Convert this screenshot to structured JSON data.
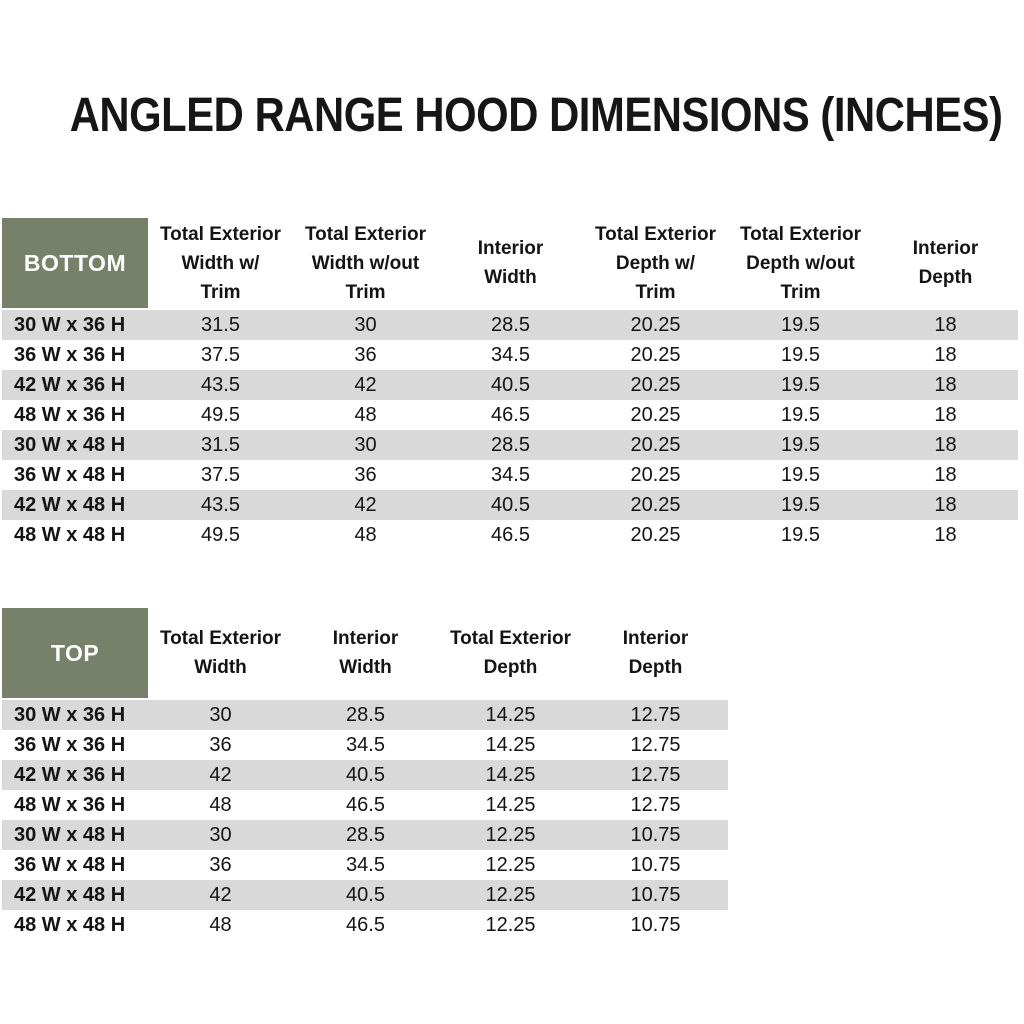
{
  "page": {
    "title": "ANGLED RANGE HOOD DIMENSIONS (INCHES)"
  },
  "colors": {
    "header_green": "#778169",
    "row_stripe_gray": "#d9d9d9",
    "header_text_white": "#ffffff",
    "body_text": "#141414"
  },
  "tables": [
    {
      "corner_label": "BOTTOM",
      "columns": [
        "Total Exterior\nWidth w/\nTrim",
        "Total Exterior\nWidth w/out\nTrim",
        "Interior\nWidth",
        "Total Exterior\nDepth w/\nTrim",
        "Total Exterior\nDepth w/out\nTrim",
        "Interior\nDepth"
      ],
      "rows": [
        {
          "label": "30 W x 36 H",
          "values": [
            "31.5",
            "30",
            "28.5",
            "20.25",
            "19.5",
            "18"
          ]
        },
        {
          "label": "36 W x 36 H",
          "values": [
            "37.5",
            "36",
            "34.5",
            "20.25",
            "19.5",
            "18"
          ]
        },
        {
          "label": "42 W x 36 H",
          "values": [
            "43.5",
            "42",
            "40.5",
            "20.25",
            "19.5",
            "18"
          ]
        },
        {
          "label": "48 W x 36 H",
          "values": [
            "49.5",
            "48",
            "46.5",
            "20.25",
            "19.5",
            "18"
          ]
        },
        {
          "label": "30 W x 48 H",
          "values": [
            "31.5",
            "30",
            "28.5",
            "20.25",
            "19.5",
            "18"
          ]
        },
        {
          "label": "36 W x 48 H",
          "values": [
            "37.5",
            "36",
            "34.5",
            "20.25",
            "19.5",
            "18"
          ]
        },
        {
          "label": "42 W x 48 H",
          "values": [
            "43.5",
            "42",
            "40.5",
            "20.25",
            "19.5",
            "18"
          ]
        },
        {
          "label": "48 W x 48 H",
          "values": [
            "49.5",
            "48",
            "46.5",
            "20.25",
            "19.5",
            "18"
          ]
        }
      ]
    },
    {
      "corner_label": "TOP",
      "columns": [
        "Total Exterior\nWidth",
        "Interior\nWidth",
        "Total Exterior\nDepth",
        "Interior\nDepth"
      ],
      "rows": [
        {
          "label": "30 W x 36 H",
          "values": [
            "30",
            "28.5",
            "14.25",
            "12.75"
          ]
        },
        {
          "label": "36 W x 36 H",
          "values": [
            "36",
            "34.5",
            "14.25",
            "12.75"
          ]
        },
        {
          "label": "42 W x 36 H",
          "values": [
            "42",
            "40.5",
            "14.25",
            "12.75"
          ]
        },
        {
          "label": "48 W x 36 H",
          "values": [
            "48",
            "46.5",
            "14.25",
            "12.75"
          ]
        },
        {
          "label": "30 W x 48 H",
          "values": [
            "30",
            "28.5",
            "12.25",
            "10.75"
          ]
        },
        {
          "label": "36 W x 48 H",
          "values": [
            "36",
            "34.5",
            "12.25",
            "10.75"
          ]
        },
        {
          "label": "42 W x 48 H",
          "values": [
            "42",
            "40.5",
            "12.25",
            "10.75"
          ]
        },
        {
          "label": "48 W x 48 H",
          "values": [
            "48",
            "46.5",
            "12.25",
            "10.75"
          ]
        }
      ]
    }
  ]
}
